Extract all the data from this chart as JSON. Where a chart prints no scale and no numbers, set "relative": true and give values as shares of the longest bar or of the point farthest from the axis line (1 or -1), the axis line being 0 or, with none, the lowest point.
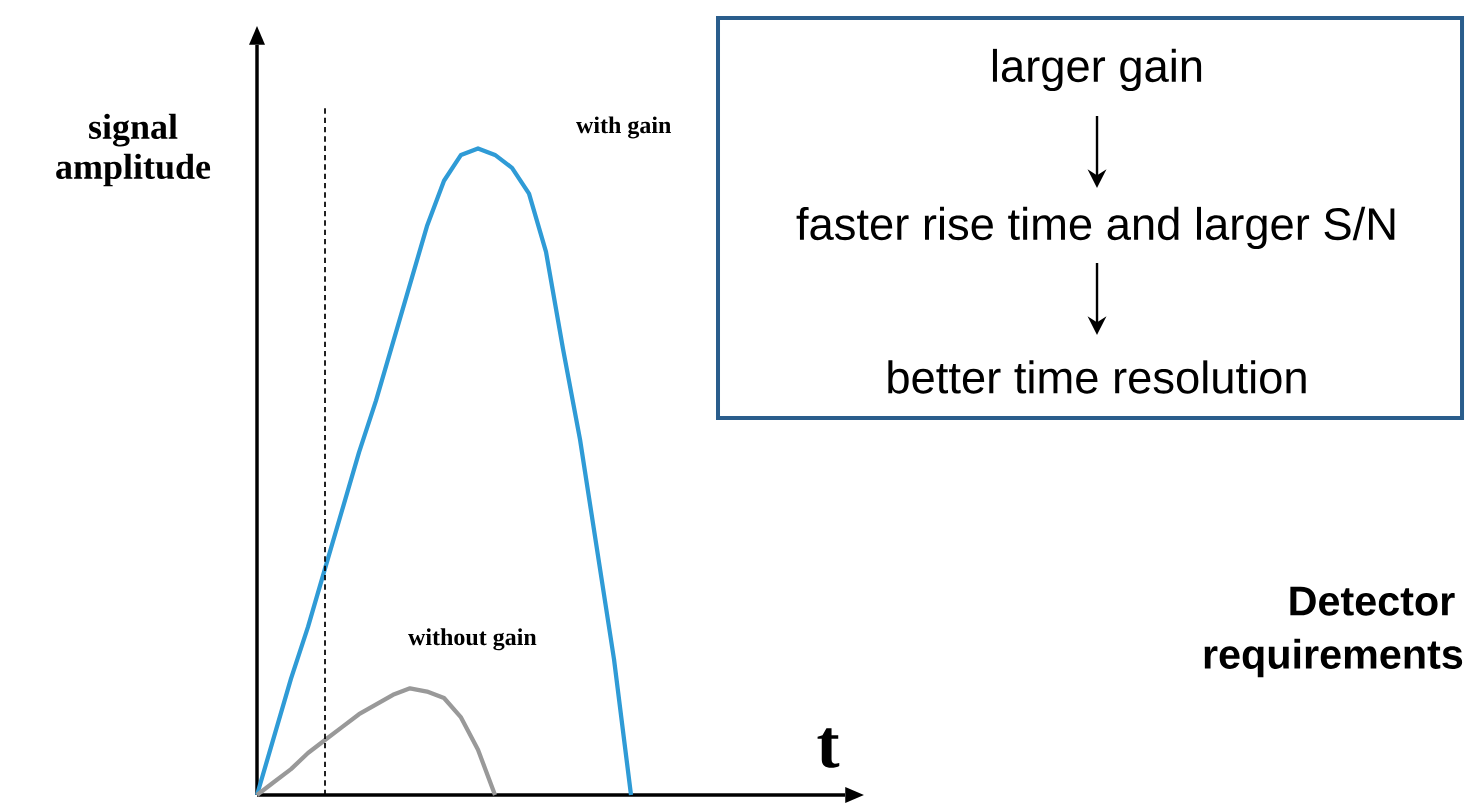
{
  "chart_data": {
    "type": "line",
    "relative": true,
    "xlabel": "t",
    "ylabel": "signal amplitude",
    "line_style": "solid",
    "categories": [
      null,
      null,
      null,
      null,
      null,
      null,
      null,
      null,
      null,
      null,
      null,
      null,
      null,
      null,
      null,
      null,
      null,
      null,
      null,
      null,
      null,
      null,
      null
    ],
    "series": [
      {
        "name": "with gain",
        "color": "#2f9bd6",
        "values": [
          0,
          0.09,
          0.18,
          0.26,
          0.35,
          0.44,
          0.53,
          0.61,
          0.7,
          0.79,
          0.88,
          0.95,
          0.99,
          1,
          0.99,
          0.97,
          0.93,
          0.84,
          0.69,
          0.55,
          0.38,
          0.21,
          0
        ]
      },
      {
        "name": "without gain",
        "color": "#999999",
        "values": [
          0,
          0.02,
          0.04,
          0.065,
          0.085,
          0.105,
          0.125,
          0.14,
          0.155,
          0.165,
          0.16,
          0.15,
          0.12,
          0.07,
          0,
          null,
          null,
          null,
          null,
          null,
          null,
          null,
          null
        ]
      }
    ],
    "annotations": [
      "larger gain",
      "faster rise time and larger S/N",
      "better time resolution",
      "Detector requirements"
    ]
  }
}
